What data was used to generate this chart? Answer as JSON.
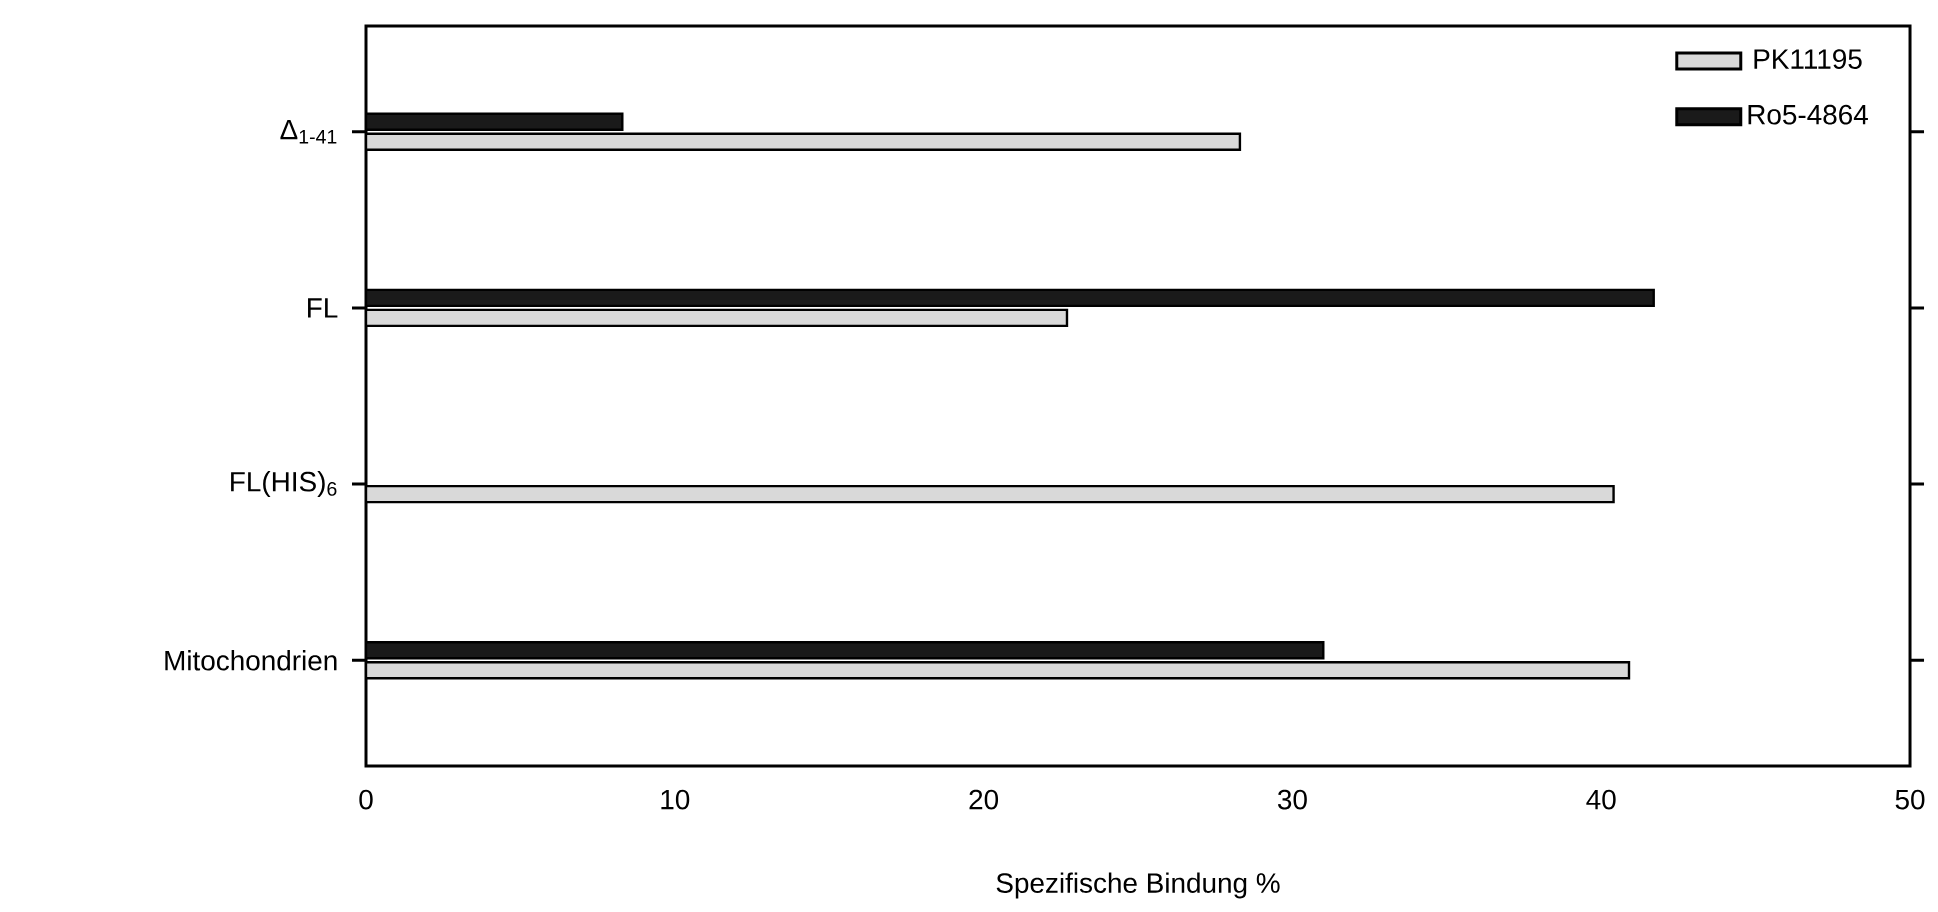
{
  "chart_data": {
    "type": "bar",
    "orientation": "horizontal",
    "xlabel": "Spezifische Bindung %",
    "categories": [
      "Δ$_{1-41}$",
      "FL",
      "FL(HIS)$_{6}$",
      "Mitochondrien"
    ],
    "series": [
      {
        "name": "PK11195",
        "color": "#d9d9d9",
        "values": [
          28.3,
          22.7,
          40.4,
          40.9
        ]
      },
      {
        "name": "Ro5-4864",
        "color": "#1a1a1a",
        "values": [
          8.3,
          41.7,
          null,
          31.0
        ]
      }
    ],
    "xlim": [
      0,
      50
    ],
    "xticks": [
      0,
      10,
      20,
      30,
      40,
      50
    ],
    "grid": false,
    "legend": "top right"
  }
}
